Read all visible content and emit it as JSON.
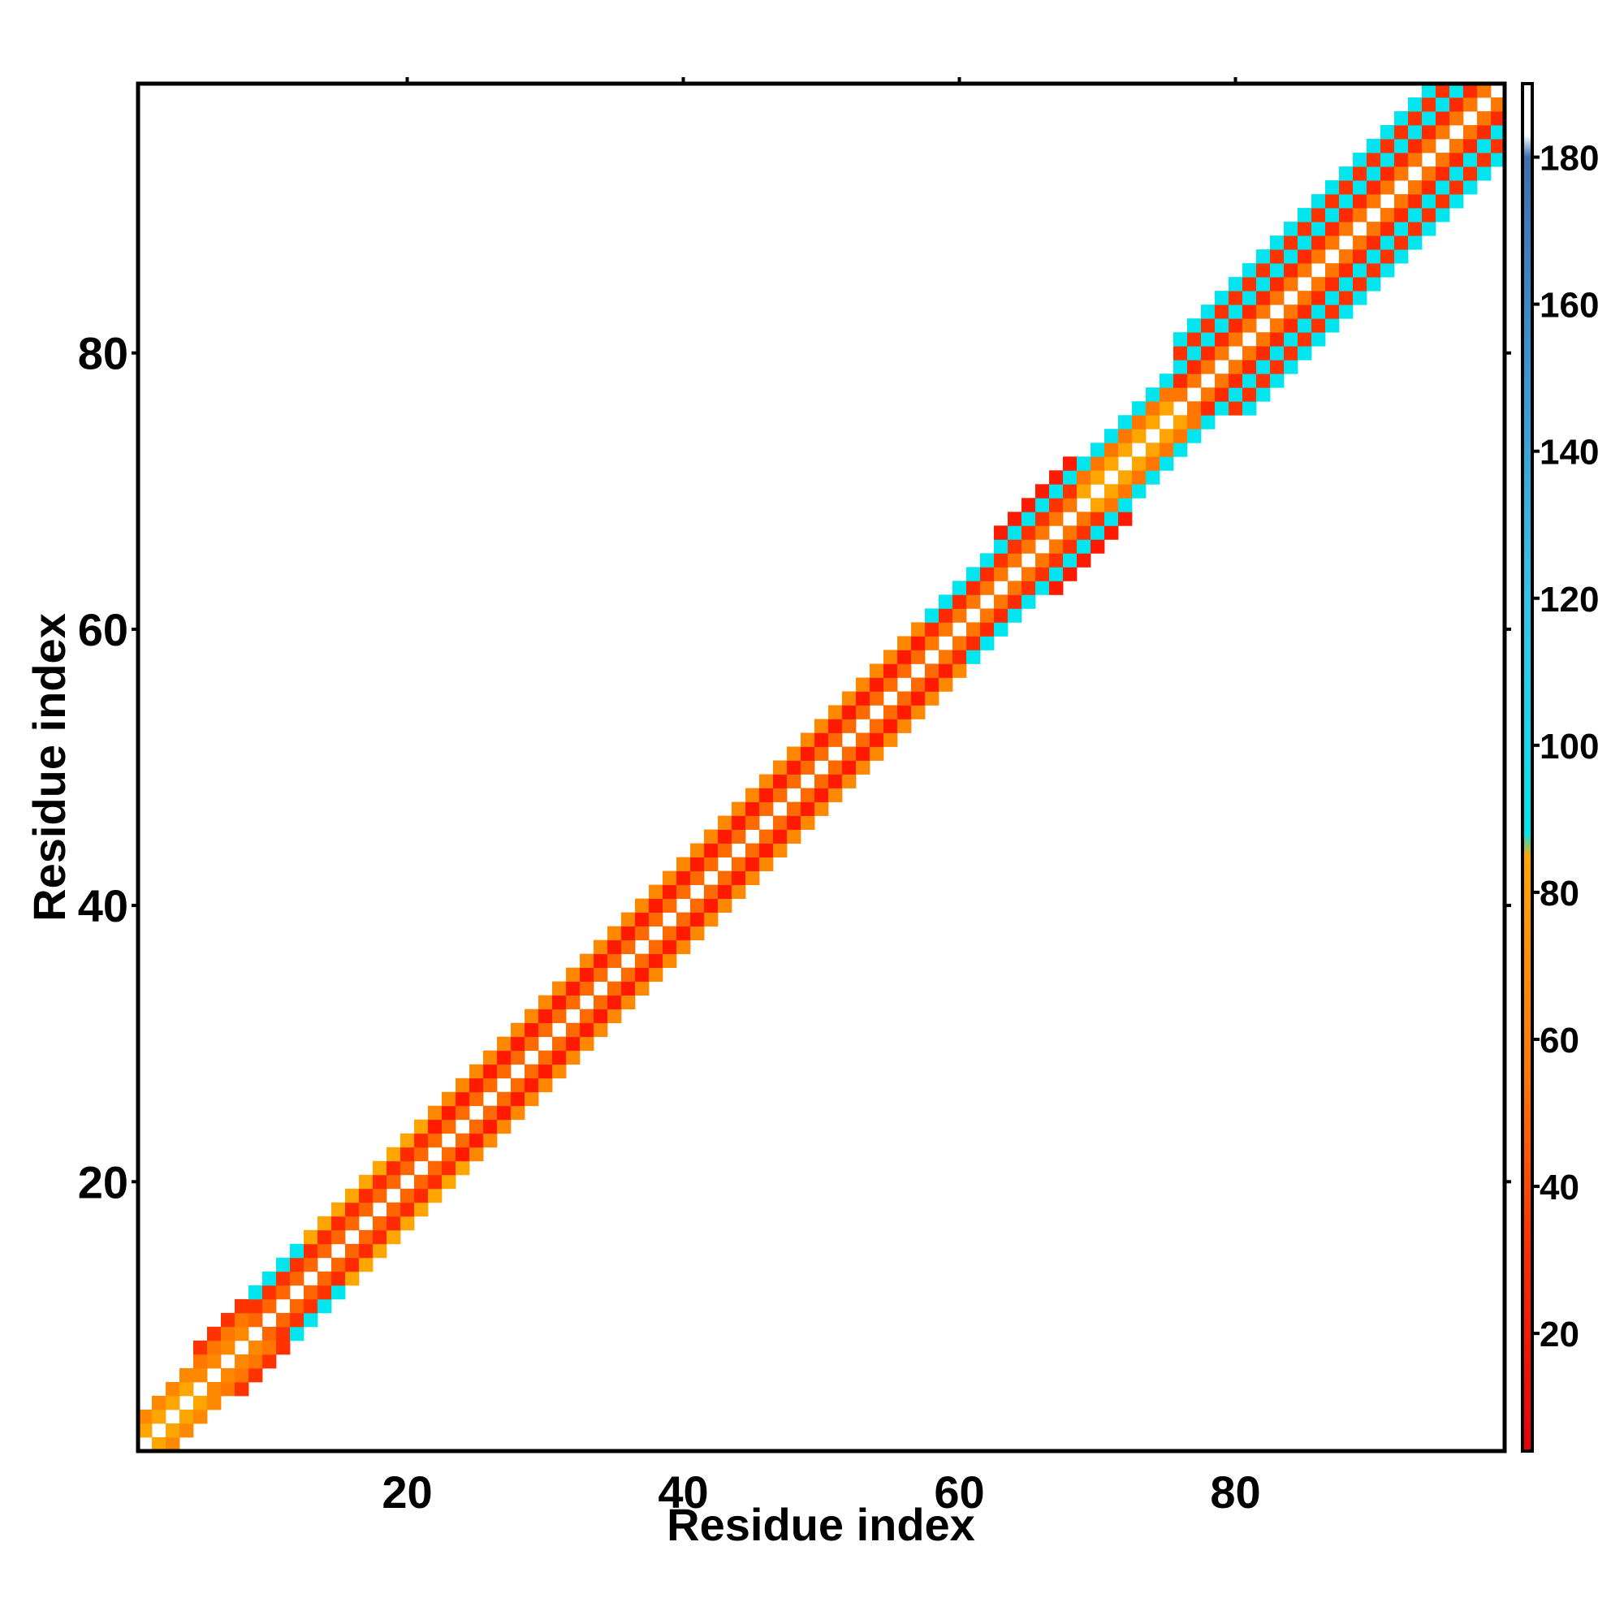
{
  "chart_data": {
    "type": "heatmap",
    "title": "",
    "xlabel": "Residue index",
    "ylabel": "Residue index",
    "xlim": [
      0.5,
      99.5
    ],
    "ylim": [
      0.5,
      99.5
    ],
    "x_ticks": [
      20,
      40,
      60,
      80
    ],
    "y_ticks": [
      20,
      40,
      60,
      80
    ],
    "grid": false,
    "colorbar": {
      "ticks": [
        20,
        40,
        60,
        80,
        100,
        120,
        140,
        160,
        180
      ],
      "range": [
        4,
        190
      ],
      "stops": [
        {
          "value": 4,
          "color": "#e8000b"
        },
        {
          "value": 30,
          "color": "#ff2a00"
        },
        {
          "value": 55,
          "color": "#ff7700"
        },
        {
          "value": 85,
          "color": "#ffa500"
        },
        {
          "value": 88,
          "color": "#00e5ee"
        },
        {
          "value": 120,
          "color": "#33c4e8"
        },
        {
          "value": 150,
          "color": "#3a96cf"
        },
        {
          "value": 180,
          "color": "#3f6fb0"
        },
        {
          "value": 183,
          "color": "#ffffff"
        },
        {
          "value": 190,
          "color": "#ffffff"
        }
      ]
    },
    "band_segments": [
      {
        "from": 1,
        "to": 4,
        "max_offset": 2,
        "colors": {
          "1": "#ffa500",
          "2": "#ff8800",
          "3": "#00e5ee",
          "4": "#ff4400"
        }
      },
      {
        "from": 5,
        "to": 8,
        "max_offset": 3,
        "colors": {
          "1": "#ff8800",
          "2": "#ff7700",
          "3": "#ff3300",
          "4": "#ffa500"
        }
      },
      {
        "from": 9,
        "to": 12,
        "max_offset": 3,
        "colors": {
          "1": "#ff6600",
          "2": "#ff3300",
          "3": "#00e5ee",
          "4": "#33c4e8"
        }
      },
      {
        "from": 13,
        "to": 21,
        "max_offset": 3,
        "colors": {
          "1": "#ff6600",
          "2": "#ff2a00",
          "3": "#ffa500",
          "4": "#ff8800"
        }
      },
      {
        "from": 22,
        "to": 57,
        "max_offset": 3,
        "colors": {
          "1": "#ff6a00",
          "2": "#ff1a00",
          "3": "#ff8800",
          "4": "#ff3300"
        }
      },
      {
        "from": 58,
        "to": 62,
        "max_offset": 3,
        "colors": {
          "1": "#ff7700",
          "2": "#ff2a00",
          "3": "#00e5ee",
          "4": "#ff3300"
        }
      },
      {
        "from": 63,
        "to": 68,
        "max_offset": 4,
        "colors": {
          "1": "#ff7700",
          "2": "#ff3300",
          "3": "#00e5ee",
          "4": "#ff1a00"
        }
      },
      {
        "from": 69,
        "to": 75,
        "max_offset": 3,
        "colors": {
          "1": "#ffa500",
          "2": "#ff7700",
          "3": "#00e5ee",
          "4": "#ff3300"
        }
      },
      {
        "from": 76,
        "to": 99,
        "max_offset": 5,
        "colors": {
          "1": "#ff7700",
          "2": "#ff2a00",
          "3": "#00e5ee",
          "4": "#ff3300",
          "5": "#00e5ee"
        }
      }
    ]
  }
}
